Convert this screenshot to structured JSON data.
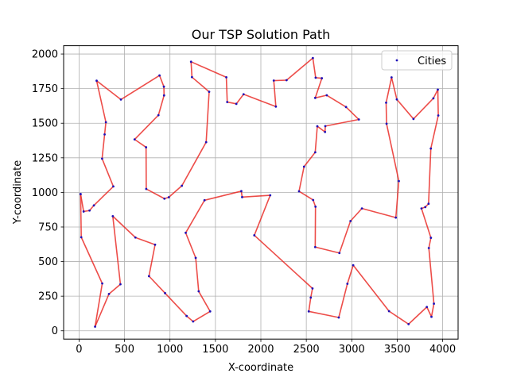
{
  "chart_data": {
    "type": "line",
    "title": "Our TSP Solution Path",
    "xlabel": "X-coordinate",
    "ylabel": "Y-coordinate",
    "xlim": [
      -170,
      4170
    ],
    "ylim": [
      -60,
      2060
    ],
    "xticks": [
      0,
      500,
      1000,
      1500,
      2000,
      2500,
      3000,
      3500,
      4000
    ],
    "xtick_labels": [
      "0",
      "500",
      "1000",
      "1500",
      "2000",
      "2500",
      "3000",
      "3500",
      "4000"
    ],
    "yticks": [
      0,
      250,
      500,
      750,
      1000,
      1250,
      1500,
      1750,
      2000
    ],
    "ytick_labels": [
      "0",
      "250",
      "500",
      "750",
      "1000",
      "1250",
      "1500",
      "1750",
      "2000"
    ],
    "grid": true,
    "legend": {
      "placement": "top-right",
      "entries": [
        "Cities"
      ]
    },
    "colors": {
      "path": "#e8201c",
      "cities": "#1f12b8",
      "grid": "#b0b0b0"
    },
    "series": [
      {
        "name": "Cities",
        "points": [
          [
            17,
            988
          ],
          [
            50,
            862
          ],
          [
            115,
            869
          ],
          [
            163,
            906
          ],
          [
            377,
            1043
          ],
          [
            253,
            1244
          ],
          [
            281,
            1419
          ],
          [
            295,
            1507
          ],
          [
            193,
            1807
          ],
          [
            460,
            1671
          ],
          [
            885,
            1845
          ],
          [
            933,
            1764
          ],
          [
            935,
            1701
          ],
          [
            873,
            1558
          ],
          [
            611,
            1383
          ],
          [
            737,
            1326
          ],
          [
            739,
            1025
          ],
          [
            939,
            955
          ],
          [
            987,
            965
          ],
          [
            1131,
            1048
          ],
          [
            1398,
            1363
          ],
          [
            1431,
            1727
          ],
          [
            1242,
            1833
          ],
          [
            1232,
            1944
          ],
          [
            1620,
            1832
          ],
          [
            1630,
            1653
          ],
          [
            1730,
            1640
          ],
          [
            1810,
            1709
          ],
          [
            2165,
            1620
          ],
          [
            2142,
            1808
          ],
          [
            2283,
            1811
          ],
          [
            2572,
            1971
          ],
          [
            2603,
            1829
          ],
          [
            2671,
            1825
          ],
          [
            2598,
            1683
          ],
          [
            2725,
            1702
          ],
          [
            2937,
            1617
          ],
          [
            3078,
            1527
          ],
          [
            2709,
            1479
          ],
          [
            2706,
            1437
          ],
          [
            2621,
            1478
          ],
          [
            2598,
            1290
          ],
          [
            2475,
            1186
          ],
          [
            2420,
            1008
          ],
          [
            2575,
            945
          ],
          [
            2601,
            897
          ],
          [
            2598,
            605
          ],
          [
            2864,
            562
          ],
          [
            2986,
            793
          ],
          [
            3112,
            884
          ],
          [
            3485,
            818
          ],
          [
            3518,
            1082
          ],
          [
            3383,
            1496
          ],
          [
            3378,
            1648
          ],
          [
            3438,
            1831
          ],
          [
            3496,
            1672
          ],
          [
            3679,
            1531
          ],
          [
            3898,
            1680
          ],
          [
            3947,
            1743
          ],
          [
            3952,
            1556
          ],
          [
            3870,
            1317
          ],
          [
            3845,
            918
          ],
          [
            3809,
            894
          ],
          [
            3767,
            884
          ],
          [
            3871,
            672
          ],
          [
            3848,
            598
          ],
          [
            3904,
            196
          ],
          [
            3877,
            101
          ],
          [
            3826,
            172
          ],
          [
            3625,
            48
          ],
          [
            3410,
            142
          ],
          [
            3016,
            474
          ],
          [
            2952,
            340
          ],
          [
            2857,
            96
          ],
          [
            2527,
            140
          ],
          [
            2549,
            240
          ],
          [
            2568,
            306
          ],
          [
            1928,
            690
          ],
          [
            2103,
            979
          ],
          [
            1794,
            966
          ],
          [
            1785,
            1009
          ],
          [
            1380,
            943
          ],
          [
            1173,
            708
          ],
          [
            1283,
            527
          ],
          [
            1316,
            285
          ],
          [
            1442,
            140
          ],
          [
            1255,
            67
          ],
          [
            1183,
            107
          ],
          [
            946,
            272
          ],
          [
            769,
            395
          ],
          [
            836,
            622
          ],
          [
            620,
            674
          ],
          [
            371,
            828
          ],
          [
            455,
            336
          ],
          [
            329,
            266
          ],
          [
            176,
            30
          ],
          [
            255,
            342
          ],
          [
            24,
            676
          ],
          [
            17,
            988
          ]
        ]
      }
    ]
  }
}
